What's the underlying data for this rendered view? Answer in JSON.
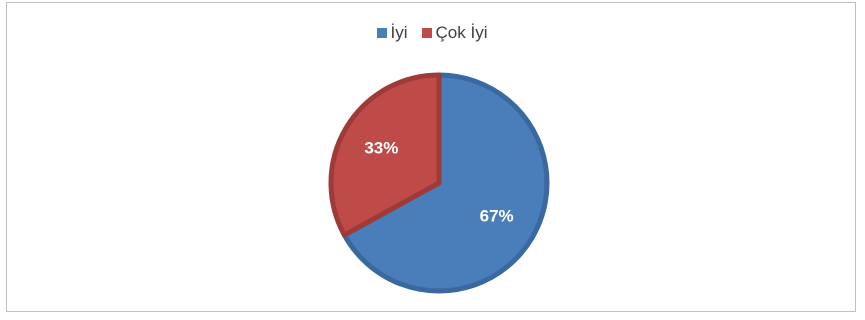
{
  "chart_data": {
    "type": "pie",
    "categories": [
      "İyi",
      "Çok İyi"
    ],
    "values": [
      67,
      33
    ],
    "data_labels": [
      "67%",
      "33%"
    ],
    "colors": [
      "#4a7ebb",
      "#be4b48"
    ],
    "edge_colors": [
      "#3a68a0",
      "#9e3b39"
    ],
    "legend_position": "top",
    "title": ""
  }
}
